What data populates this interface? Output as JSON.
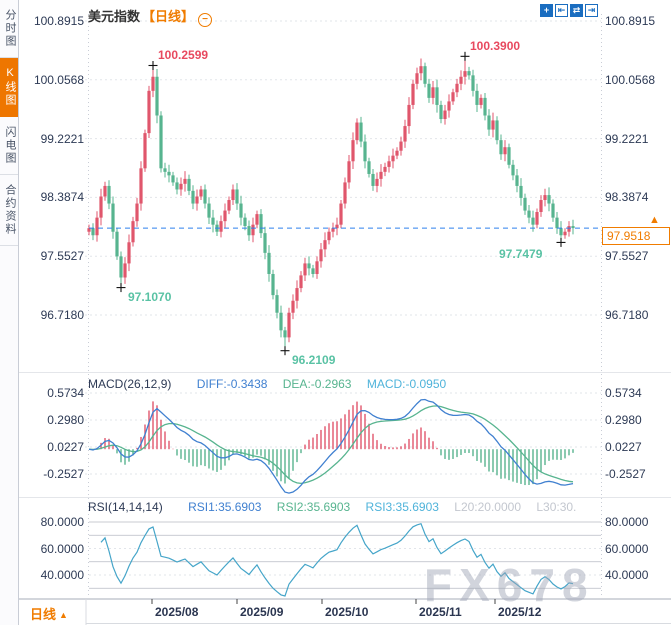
{
  "sidebar": {
    "items": [
      {
        "label": "分时图",
        "active": false
      },
      {
        "label": "K线图",
        "active": true
      },
      {
        "label": "闪电图",
        "active": false
      },
      {
        "label": "合约资料",
        "active": false
      }
    ]
  },
  "header": {
    "title": "美元指数",
    "timeframe": "【日线】",
    "collapse_glyph": "−"
  },
  "toolbar": {
    "icons": [
      {
        "name": "pan-icon",
        "glyph": "+"
      },
      {
        "name": "zoom-in-x-icon",
        "glyph": "⇤"
      },
      {
        "name": "zoom-out-x-icon",
        "glyph": "⇄"
      },
      {
        "name": "jump-to-latest-icon",
        "glyph": "⇥"
      }
    ]
  },
  "footer": {
    "timeframe_label": "日线",
    "arrow": "▲"
  },
  "watermark": "FX678",
  "colors": {
    "candle_up": "#e0566c",
    "candle_down": "#57b48f",
    "annotation_high": "#e8495f",
    "annotation_low": "#59c2a4",
    "accent_orange": "#f07c00",
    "dashed_price_line": "#2f80ed",
    "macd_diff_line": "#4080d0",
    "macd_dea_line": "#57b48f",
    "macd_value_text": "#4fb3da",
    "rsi_line": "#45a5c9",
    "axis_text": "#2d3a55",
    "grid_dotted": "#e2e5ea",
    "grid_solid": "#b6bac3"
  },
  "chart_data": {
    "type": "candlestick",
    "title": "美元指数",
    "period": "日线",
    "y_axis_labels": [
      "100.8915",
      "100.0568",
      "99.2221",
      "98.3874",
      "97.5527",
      "96.7180"
    ],
    "x_axis_labels": [
      "2025/08",
      "2025/09",
      "2025/10",
      "2025/11",
      "2025/12"
    ],
    "current_price": "97.9518",
    "closes": [
      97.95,
      97.85,
      98.1,
      98.4,
      98.55,
      98.3,
      97.9,
      97.55,
      97.25,
      97.45,
      97.75,
      98.05,
      98.3,
      98.8,
      99.3,
      99.9,
      100.1,
      99.55,
      98.8,
      98.75,
      98.7,
      98.6,
      98.5,
      98.58,
      98.65,
      98.48,
      98.3,
      98.4,
      98.5,
      98.3,
      98.1,
      98.0,
      97.9,
      98.05,
      98.2,
      98.35,
      98.5,
      98.3,
      98.1,
      97.98,
      97.85,
      98.0,
      98.15,
      97.88,
      97.6,
      97.3,
      97.0,
      96.75,
      96.5,
      96.4,
      96.75,
      96.92,
      97.1,
      97.28,
      97.45,
      97.38,
      97.3,
      97.48,
      97.65,
      97.78,
      97.9,
      97.95,
      98.0,
      98.3,
      98.6,
      98.9,
      99.2,
      99.45,
      99.18,
      98.9,
      98.72,
      98.55,
      98.65,
      98.75,
      98.82,
      98.9,
      98.98,
      99.05,
      99.18,
      99.4,
      99.7,
      100.0,
      100.15,
      100.25,
      100.0,
      99.8,
      99.95,
      99.7,
      99.5,
      99.62,
      99.75,
      99.88,
      100.0,
      100.1,
      100.18,
      100.12,
      99.9,
      99.7,
      99.8,
      99.55,
      99.35,
      99.48,
      99.2,
      99.0,
      99.1,
      98.85,
      98.7,
      98.55,
      98.38,
      98.2,
      98.1,
      98.0,
      98.18,
      98.35,
      98.42,
      98.3,
      98.1,
      97.95,
      97.85,
      97.9,
      97.98,
      97.9518
    ],
    "wick_overrides": {
      "8": {
        "low": 97.107
      },
      "16": {
        "high": 100.2599
      },
      "49": {
        "low": 96.2109
      },
      "83": {
        "high": 100.36
      },
      "94": {
        "high": 100.39
      },
      "118": {
        "low": 97.7479
      }
    },
    "annotations": [
      {
        "index": 16,
        "price": 100.2599,
        "text": "100.2599",
        "type": "high"
      },
      {
        "index": 94,
        "price": 100.39,
        "text": "100.3900",
        "type": "high"
      },
      {
        "index": 8,
        "price": 97.107,
        "text": "97.1070",
        "type": "low"
      },
      {
        "index": 49,
        "price": 96.2109,
        "text": "96.2109",
        "type": "low"
      },
      {
        "index": 118,
        "price": 97.7479,
        "text": "97.7479",
        "type": "low",
        "align": "left"
      }
    ],
    "macd": {
      "label": "MACD(26,12,9)",
      "diff_label": "DIFF:-0.3438",
      "dea_label": "DEA:-0.2963",
      "macd_label": "MACD:-0.0950",
      "axis_labels": [
        "0.5734",
        "0.2980",
        "0.0227",
        "-0.2527"
      ]
    },
    "rsi": {
      "label": "RSI(14,14,14)",
      "rsi1_label": "RSI1:35.6903",
      "rsi2_label": "RSI2:35.6903",
      "rsi3_label": "RSI3:35.6903",
      "l20_label": "L20:20.0000",
      "l30_label": "L30:30.",
      "axis_labels": [
        "80.0000",
        "60.0000",
        "40.0000"
      ]
    }
  }
}
